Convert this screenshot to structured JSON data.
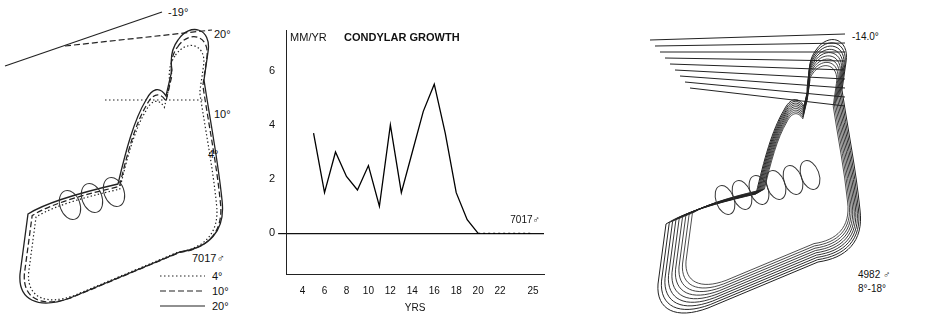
{
  "left_panel": {
    "angle_labels": [
      "-19°",
      "20°",
      "10°",
      "4°"
    ],
    "specimen": "7017♂",
    "legend": [
      {
        "line_style": "dotted",
        "label": "4°"
      },
      {
        "line_style": "dashed",
        "label": "10°"
      },
      {
        "line_style": "solid",
        "label": "20°"
      }
    ]
  },
  "chart_data": {
    "type": "line",
    "title": "CONDYLAR GROWTH",
    "y_label": "MM/YR",
    "x_label": "YRS",
    "annotation": "7017♂",
    "x": [
      5,
      6,
      7,
      8,
      9,
      10,
      11,
      12,
      13,
      14,
      15,
      16,
      17,
      18,
      19,
      20,
      21,
      22,
      23,
      24,
      25
    ],
    "series": [
      {
        "color": "#000000",
        "line_style": "solid",
        "values": [
          3.7,
          1.5,
          3.0,
          2.1,
          1.6,
          2.5,
          1.0,
          4.0,
          1.5,
          3.0,
          4.5,
          5.5,
          3.7,
          1.5,
          0.5,
          0,
          null,
          null,
          null,
          null,
          null
        ]
      },
      {
        "color": "#000000",
        "line_style": "dotted",
        "values": [
          null,
          null,
          null,
          null,
          null,
          null,
          null,
          null,
          null,
          null,
          null,
          null,
          null,
          null,
          null,
          0,
          0,
          0,
          0,
          0,
          0
        ]
      }
    ],
    "xlim": [
      2.5,
      26
    ],
    "xticks": [
      4,
      6,
      8,
      10,
      12,
      14,
      16,
      18,
      20,
      22,
      25
    ],
    "ylim": [
      -1.5,
      7.5
    ],
    "yticks": [
      0,
      2,
      4,
      6
    ]
  },
  "right_panel": {
    "angle_label": "-14.0°",
    "specimen": "4982 ♂",
    "range_label": "8°-18°"
  }
}
